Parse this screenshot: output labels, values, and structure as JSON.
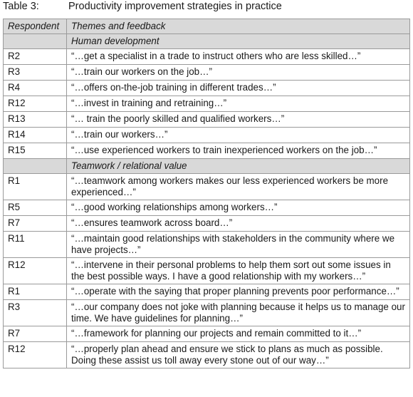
{
  "caption": {
    "label": "Table 3:",
    "title": "Productivity improvement strategies in practice"
  },
  "table": {
    "header": [
      "Respondent",
      "Themes and feedback"
    ],
    "sections": [
      {
        "title": "Human development",
        "rows": [
          [
            "R2",
            "“…get a specialist in a trade to instruct others who are less skilled…”"
          ],
          [
            "R3",
            "“…train our workers on the job…”"
          ],
          [
            "R4",
            "“…offers on-the-job training in different trades…”"
          ],
          [
            "R12",
            "“…invest in training and retraining…”"
          ],
          [
            "R13",
            "“… train the poorly skilled and qualified workers…”"
          ],
          [
            "R14",
            "“…train our workers…”"
          ],
          [
            "R15",
            "“…use experienced workers to train inexperienced workers on the job…”"
          ]
        ]
      },
      {
        "title": "Teamwork / relational value",
        "rows": [
          [
            "R1",
            "“…teamwork among workers makes our less experienced workers be more experienced…”"
          ],
          [
            "R5",
            "“…good working relationships among workers…”"
          ],
          [
            "R7",
            "“…ensures teamwork across board…”"
          ],
          [
            "R11",
            "“…maintain good relationships with stakeholders in the community where we have projects…”"
          ],
          [
            "R12",
            "“…intervene in their personal problems to help them sort out some issues in the best possible ways. I have a good relationship with my workers…”"
          ],
          [
            "R1",
            "“…operate with the saying that proper planning prevents poor performance…”"
          ],
          [
            "R3",
            "“…our company does not joke with planning because it helps us to manage our time. We have guidelines for planning…”"
          ],
          [
            "R7",
            "“…framework for planning our projects and remain committed to it…”"
          ],
          [
            "R12",
            "“…properly plan ahead and ensure we stick to plans as much as possible. Doing these assist us toll away every stone out of our way…”"
          ]
        ]
      }
    ]
  }
}
